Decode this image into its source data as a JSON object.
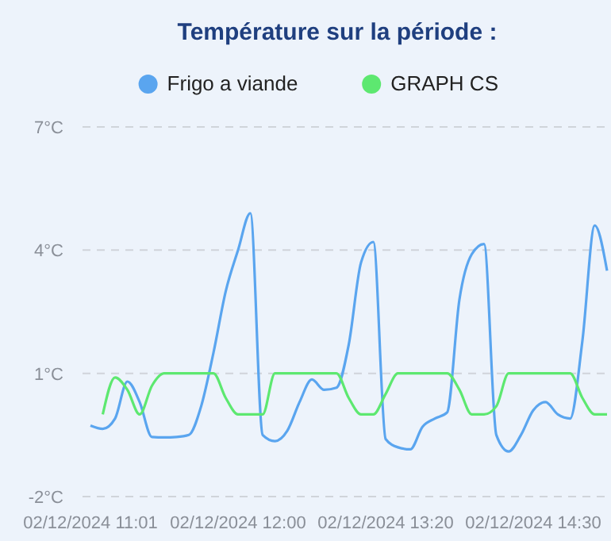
{
  "chart_data": {
    "type": "line",
    "title": "Température sur la période :",
    "legend": "top",
    "grid": "y",
    "marker": "none",
    "line_style": "solid",
    "categories": [
      "02/12/2024 11:01",
      null,
      null,
      null,
      null,
      null,
      null,
      null,
      null,
      null,
      null,
      null,
      "02/12/2024 12:00",
      null,
      null,
      null,
      null,
      null,
      null,
      null,
      null,
      null,
      null,
      null,
      "02/12/2024 13:20",
      null,
      null,
      null,
      null,
      null,
      null,
      null,
      null,
      null,
      null,
      null,
      "02/12/2024 14:30",
      null,
      null,
      null,
      null,
      null,
      null
    ],
    "ylim": [
      -2,
      7
    ],
    "yticks": [
      {
        "value": -2,
        "label": "-2°C"
      },
      {
        "value": 1,
        "label": "1°C"
      },
      {
        "value": 4,
        "label": "4°C"
      },
      {
        "value": 7,
        "label": "7°C"
      }
    ],
    "series": [
      {
        "name": "Frigo a viande",
        "color": "#5aa5ef",
        "values": [
          -0.27,
          -0.35,
          -0.1,
          0.8,
          0.3,
          -0.55,
          -0.56,
          -0.55,
          -0.5,
          0.2,
          1.5,
          3.0,
          4.0,
          4.9,
          -0.5,
          -0.65,
          -0.4,
          0.3,
          0.85,
          0.6,
          0.65,
          1.7,
          3.7,
          4.2,
          -0.6,
          -0.8,
          -0.85,
          -0.3,
          -0.1,
          0.05,
          2.8,
          3.9,
          4.15,
          -0.5,
          -0.9,
          -0.5,
          0.1,
          0.3,
          0.0,
          -0.1,
          1.8,
          4.6,
          3.5
        ]
      },
      {
        "name": "GRAPH CS",
        "color": "#5de870",
        "values": [
          null,
          0,
          0.9,
          0.6,
          0,
          0.7,
          1,
          1,
          1,
          1,
          1,
          0.4,
          0,
          0,
          0,
          1,
          1,
          1,
          1,
          1,
          1,
          0.4,
          0,
          0,
          0.5,
          1,
          1,
          1,
          1,
          1,
          0.6,
          0,
          0,
          0.2,
          1,
          1,
          1,
          1,
          1,
          1,
          0.4,
          0,
          0
        ]
      }
    ]
  }
}
